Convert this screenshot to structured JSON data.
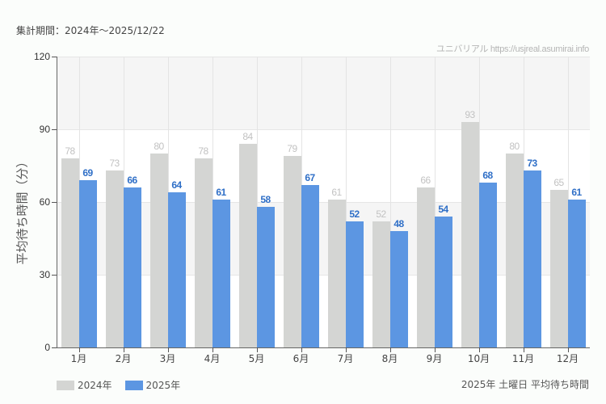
{
  "header": {
    "period": "集計期間：2024年～2025/12/22",
    "credit": "ユニバリアル  https://usjreal.asumirai.info"
  },
  "caption": "2025年 土曜日 平均待ち時間",
  "colors": {
    "series_2024": "#d4d5d3",
    "series_2025": "#5c96e2",
    "label_2024": "#c2c2c2",
    "label_2025": "#2f6fc7",
    "band": "#f5f5f5"
  },
  "chart_data": {
    "type": "bar",
    "title": "2025年 土曜日 平均待ち時間",
    "subtitle": "集計期間：2024年～2025/12/22",
    "xlabel": "",
    "ylabel": "平均待ち時間（分）",
    "ylim": [
      0,
      120
    ],
    "yticks": [
      0,
      30,
      60,
      90,
      120
    ],
    "grid": true,
    "legend_position": "bottom-left",
    "categories": [
      "1月",
      "2月",
      "3月",
      "4月",
      "5月",
      "6月",
      "7月",
      "8月",
      "9月",
      "10月",
      "11月",
      "12月"
    ],
    "series": [
      {
        "name": "2024年",
        "values": [
          78,
          73,
          80,
          78,
          84,
          79,
          61,
          52,
          66,
          93,
          80,
          65
        ]
      },
      {
        "name": "2025年",
        "values": [
          69,
          66,
          64,
          61,
          58,
          67,
          52,
          48,
          54,
          68,
          73,
          61
        ]
      }
    ]
  }
}
